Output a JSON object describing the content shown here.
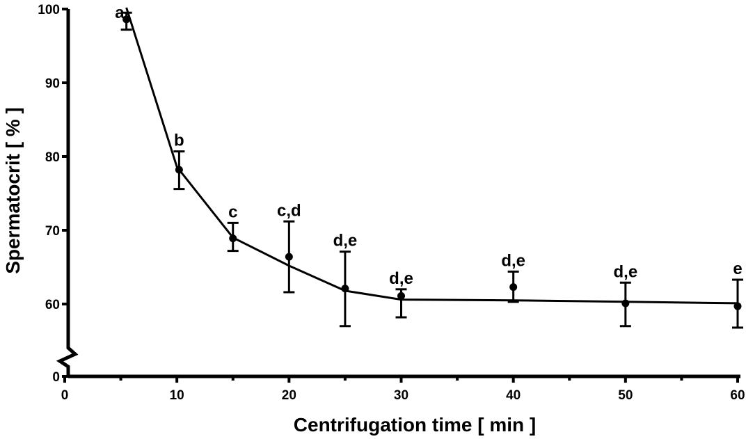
{
  "chart_data": {
    "type": "scatter",
    "title": "",
    "xlabel": "Centrifugation  time  [ min ]",
    "ylabel": "Spermatocrit  [ % ]",
    "xlim": [
      0,
      60
    ],
    "ylim": [
      0,
      100
    ],
    "y_axis_break": true,
    "x_ticks": [
      0,
      10,
      20,
      30,
      40,
      50,
      60
    ],
    "y_ticks": [
      0,
      60,
      70,
      80,
      90,
      100
    ],
    "x_tick_labels": [
      "0",
      "10",
      "20",
      "30",
      "40",
      "50",
      "60"
    ],
    "y_tick_labels": [
      "0",
      "60",
      "70",
      "80",
      "90",
      "100"
    ],
    "grid": false,
    "legend": "none",
    "series": [
      {
        "x": [
          5.5,
          10.2,
          15.0,
          20.0,
          25.0,
          30.0,
          40.0,
          50.0,
          60.0
        ],
        "y": [
          98.6,
          78.2,
          68.9,
          66.4,
          62.1,
          61.1,
          62.3,
          60.1,
          59.7
        ],
        "y_upper": [
          99.5,
          80.7,
          71.0,
          71.2,
          67.1,
          62.0,
          64.4,
          62.9,
          63.3
        ],
        "y_lower": [
          97.2,
          75.6,
          67.2,
          61.6,
          57.0,
          58.2,
          60.3,
          57.0,
          56.8
        ],
        "labels": [
          "a",
          "b",
          "c",
          "c,d",
          "d,e",
          "d,e",
          "d,e",
          "d,e",
          "e"
        ]
      }
    ],
    "fit_curve": {
      "x": [
        5.5,
        10,
        15,
        20,
        25,
        30,
        40,
        50,
        60
      ],
      "y": [
        100.2,
        78.6,
        69.0,
        65.2,
        61.8,
        60.6,
        60.5,
        60.3,
        60.1
      ]
    }
  }
}
